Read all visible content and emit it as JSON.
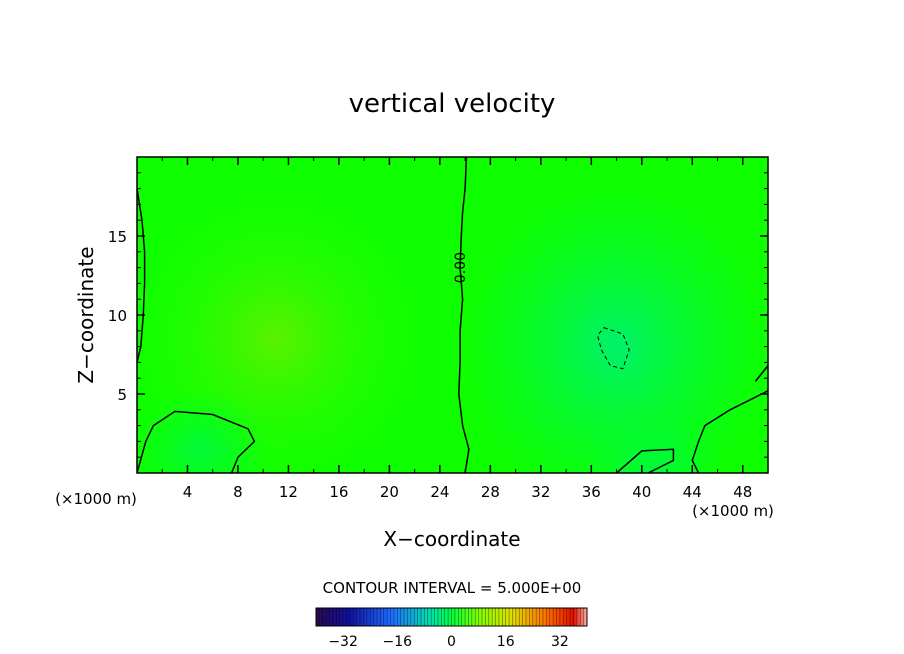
{
  "chart_data": {
    "type": "heatmap",
    "title": "vertical velocity",
    "xlabel": "X−coordinate",
    "ylabel": "Z−coordinate",
    "x_unit_left": "(×1000 m)",
    "x_unit_right": "(×1000 m)",
    "xlim": [
      0,
      50
    ],
    "ylim": [
      0,
      20
    ],
    "x_ticks": [
      4,
      8,
      12,
      16,
      20,
      24,
      28,
      32,
      36,
      40,
      44,
      48
    ],
    "x_tick_labels": [
      "4",
      "8",
      "12",
      "16",
      "20",
      "24",
      "28",
      "32",
      "36",
      "40",
      "44",
      "48"
    ],
    "y_ticks": [
      5,
      10,
      15
    ],
    "y_tick_labels": [
      "5",
      "10",
      "15"
    ],
    "contour_interval_text": "CONTOUR INTERVAL = 5.000E+00",
    "contour_label": "0.00",
    "colorbar": {
      "min": -40,
      "max": 40,
      "ticks": [
        -32,
        -16,
        0,
        16,
        32
      ],
      "tick_labels": [
        "−32",
        "−16",
        "0",
        "16",
        "32"
      ]
    },
    "field_features": [
      {
        "kind": "max",
        "x": 11,
        "z": 8.5,
        "value": 2
      },
      {
        "kind": "min",
        "x": 38,
        "z": 8,
        "value": -5.5
      },
      {
        "kind": "min",
        "x": 5,
        "z": 1.5,
        "value": -2
      },
      {
        "kind": "min",
        "x": 41,
        "z": 0.5,
        "value": -1.5
      }
    ],
    "contours": [
      {
        "level": 0,
        "style": "solid",
        "points": [
          [
            26,
            0
          ],
          [
            26.3,
            1.5
          ],
          [
            25.8,
            3
          ],
          [
            25.5,
            5
          ],
          [
            25.6,
            7
          ],
          [
            25.6,
            9
          ],
          [
            25.8,
            11
          ],
          [
            25.6,
            13
          ],
          [
            25.7,
            15
          ],
          [
            25.8,
            16.5
          ],
          [
            26,
            18
          ],
          [
            26.1,
            20
          ]
        ]
      },
      {
        "level": 0,
        "style": "solid",
        "points": [
          [
            0,
            18
          ],
          [
            0.4,
            16
          ],
          [
            0.6,
            14
          ],
          [
            0.6,
            12
          ],
          [
            0.5,
            10
          ],
          [
            0.3,
            8
          ],
          [
            0,
            7
          ]
        ]
      },
      {
        "level": 0,
        "style": "solid",
        "points": [
          [
            0,
            0
          ],
          [
            0.7,
            2
          ],
          [
            1.3,
            3
          ],
          [
            3,
            3.9
          ],
          [
            6,
            3.7
          ],
          [
            8.8,
            2.8
          ],
          [
            9.3,
            2
          ],
          [
            8,
            1
          ],
          [
            7.5,
            0
          ]
        ]
      },
      {
        "level": 0,
        "style": "solid",
        "points": [
          [
            38,
            0
          ],
          [
            40,
            1.4
          ],
          [
            42.5,
            1.5
          ],
          [
            42.5,
            0.8
          ],
          [
            40.5,
            0
          ]
        ]
      },
      {
        "level": 0,
        "style": "solid",
        "points": [
          [
            44.5,
            0
          ],
          [
            44,
            0.8
          ],
          [
            44.5,
            2
          ],
          [
            45,
            3
          ],
          [
            47,
            4
          ],
          [
            49,
            4.8
          ],
          [
            50,
            5.2
          ]
        ]
      },
      {
        "level": 0,
        "style": "solid",
        "points": [
          [
            49,
            5.8
          ],
          [
            50,
            6.8
          ]
        ]
      },
      {
        "level": -5,
        "style": "dashed",
        "points": [
          [
            37,
            9.2
          ],
          [
            38.5,
            8.8
          ],
          [
            39,
            7.8
          ],
          [
            38.5,
            6.6
          ],
          [
            37.5,
            6.8
          ],
          [
            36.8,
            7.8
          ],
          [
            36.5,
            8.7
          ],
          [
            37,
            9.2
          ]
        ]
      }
    ]
  }
}
